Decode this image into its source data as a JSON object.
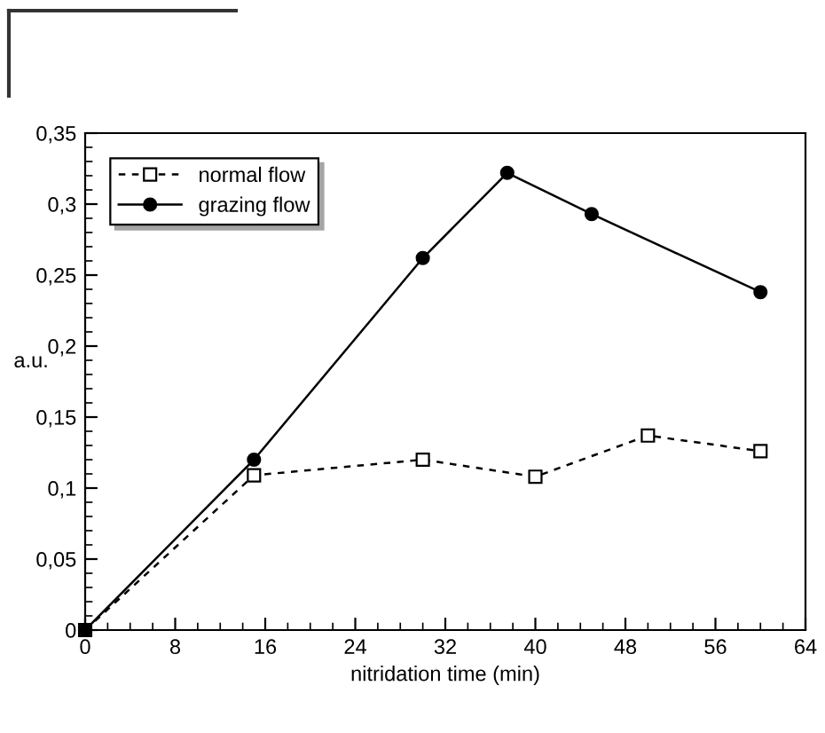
{
  "chart_data": {
    "type": "line",
    "xlabel": "nitridation time (min)",
    "ylabel": "a.u.",
    "xlim": [
      0,
      64
    ],
    "xticks": [
      0,
      8,
      16,
      24,
      32,
      40,
      48,
      56,
      64
    ],
    "ylim": [
      0,
      0.35
    ],
    "yticks": [
      0,
      {
        "value": 0.05,
        "label": "0,05"
      },
      {
        "value": 0.1,
        "label": "0,1"
      },
      {
        "value": 0.15,
        "label": "0,15"
      },
      {
        "value": 0.2,
        "label": "0,2"
      },
      {
        "value": 0.25,
        "label": "0,25"
      },
      {
        "value": 0.3,
        "label": "0,3"
      },
      {
        "value": 0.35,
        "label": "0,35"
      }
    ],
    "grid": false,
    "legend": "top left",
    "series": [
      {
        "name": "normal flow",
        "color": "#000000",
        "marker": "square",
        "line_style": "dashed",
        "x": [
          0,
          15,
          30,
          40,
          50,
          60
        ],
        "values": [
          0,
          0.109,
          0.12,
          0.108,
          0.137,
          0.126
        ]
      },
      {
        "name": "grazing flow",
        "color": "#000000",
        "marker": "circle",
        "line_style": "solid",
        "x": [
          0,
          15,
          30,
          37.5,
          45,
          60
        ],
        "values": [
          0,
          0.12,
          0.262,
          0.322,
          0.293,
          0.238
        ]
      }
    ]
  }
}
